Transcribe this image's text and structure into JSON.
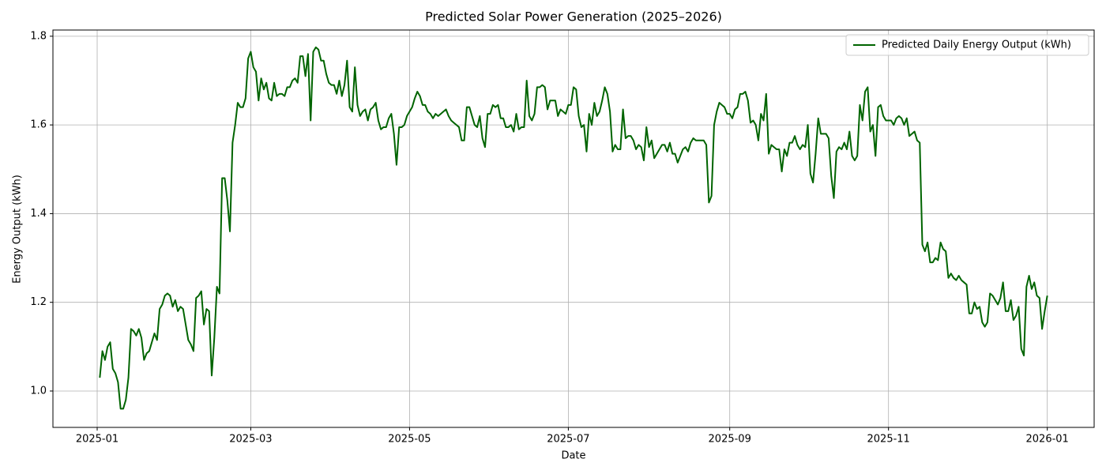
{
  "chart_data": {
    "type": "line",
    "title": "Predicted Solar Power Generation (2025–2026)",
    "xlabel": "Date",
    "ylabel": "Energy Output (kWh)",
    "x": [
      1,
      2,
      3,
      4,
      5,
      6,
      7,
      8,
      9,
      10,
      11,
      12,
      13,
      14,
      15,
      16,
      17,
      18,
      19,
      20,
      21,
      22,
      23,
      24,
      25,
      26,
      27,
      28,
      29,
      30,
      31,
      32,
      33,
      34,
      35,
      36,
      37,
      38,
      39,
      40,
      41,
      42,
      43,
      44,
      45,
      46,
      47,
      48,
      49,
      50,
      51,
      52,
      53,
      54,
      55,
      56,
      57,
      58,
      59,
      60,
      61,
      62,
      63,
      64,
      65,
      66,
      67,
      68,
      69,
      70,
      71,
      72,
      73,
      74,
      75,
      76,
      77,
      78,
      79,
      80,
      81,
      82,
      83,
      84,
      85,
      86,
      87,
      88,
      89,
      90,
      91,
      92,
      93,
      94,
      95,
      96,
      97,
      98,
      99,
      100,
      101,
      102,
      103,
      104,
      105,
      106,
      107,
      108,
      109,
      110,
      111,
      112,
      113,
      114,
      115,
      116,
      117,
      118,
      119,
      120,
      121,
      122,
      123,
      124,
      125,
      126,
      127,
      128,
      129,
      130,
      131,
      132,
      133,
      134,
      135,
      136,
      137,
      138,
      139,
      140,
      141,
      142,
      143,
      144,
      145,
      146,
      147,
      148,
      149,
      150,
      151,
      152,
      153,
      154,
      155,
      156,
      157,
      158,
      159,
      160,
      161,
      162,
      163,
      164,
      165,
      166,
      167,
      168,
      169,
      170,
      171,
      172,
      173,
      174,
      175,
      176,
      177,
      178,
      179,
      180,
      181,
      182,
      183,
      184,
      185,
      186,
      187,
      188,
      189,
      190,
      191,
      192,
      193,
      194,
      195,
      196,
      197,
      198,
      199,
      200,
      201,
      202,
      203,
      204,
      205,
      206,
      207,
      208,
      209,
      210,
      211,
      212,
      213,
      214,
      215,
      216,
      217,
      218,
      219,
      220,
      221,
      222,
      223,
      224,
      225,
      226,
      227,
      228,
      229,
      230,
      231,
      232,
      233,
      234,
      235,
      236,
      237,
      238,
      239,
      240,
      241,
      242,
      243,
      244,
      245,
      246,
      247,
      248,
      249,
      250,
      251,
      252,
      253,
      254,
      255,
      256,
      257,
      258,
      259,
      260,
      261,
      262,
      263,
      264,
      265,
      266,
      267,
      268,
      269,
      270,
      271,
      272,
      273,
      274,
      275,
      276,
      277,
      278,
      279,
      280,
      281,
      282,
      283,
      284,
      285,
      286,
      287,
      288,
      289,
      290,
      291,
      292,
      293,
      294,
      295,
      296,
      297,
      298,
      299,
      300,
      301,
      302,
      303,
      304,
      305,
      306,
      307,
      308,
      309,
      310,
      311,
      312,
      313,
      314,
      315,
      316,
      317,
      318,
      319,
      320,
      321,
      322,
      323,
      324,
      325,
      326,
      327,
      328,
      329,
      330,
      331,
      332,
      333,
      334,
      335,
      336,
      337,
      338,
      339,
      340,
      341,
      342,
      343,
      344,
      345,
      346,
      347,
      348,
      349,
      350,
      351,
      352,
      353,
      354,
      355,
      356,
      357,
      358,
      359,
      360,
      361,
      362,
      363,
      364,
      365
    ],
    "series": [
      {
        "name": "Predicted Daily Energy Output (kWh)",
        "color": "#006400",
        "values": [
          1.03,
          1.09,
          1.07,
          1.1,
          1.11,
          1.05,
          1.04,
          1.02,
          0.96,
          0.96,
          0.98,
          1.03,
          1.14,
          1.135,
          1.125,
          1.14,
          1.12,
          1.07,
          1.085,
          1.09,
          1.11,
          1.13,
          1.115,
          1.185,
          1.195,
          1.215,
          1.22,
          1.215,
          1.19,
          1.205,
          1.18,
          1.19,
          1.185,
          1.15,
          1.115,
          1.105,
          1.09,
          1.21,
          1.215,
          1.225,
          1.15,
          1.185,
          1.18,
          1.035,
          1.12,
          1.235,
          1.22,
          1.48,
          1.48,
          1.43,
          1.36,
          1.56,
          1.6,
          1.65,
          1.64,
          1.64,
          1.66,
          1.75,
          1.765,
          1.73,
          1.72,
          1.655,
          1.705,
          1.68,
          1.695,
          1.66,
          1.655,
          1.695,
          1.665,
          1.67,
          1.67,
          1.665,
          1.685,
          1.685,
          1.7,
          1.705,
          1.695,
          1.755,
          1.755,
          1.71,
          1.76,
          1.61,
          1.765,
          1.775,
          1.77,
          1.745,
          1.745,
          1.715,
          1.695,
          1.69,
          1.69,
          1.67,
          1.7,
          1.665,
          1.69,
          1.745,
          1.64,
          1.63,
          1.73,
          1.645,
          1.62,
          1.63,
          1.635,
          1.61,
          1.635,
          1.64,
          1.65,
          1.61,
          1.59,
          1.595,
          1.595,
          1.615,
          1.625,
          1.58,
          1.51,
          1.595,
          1.595,
          1.6,
          1.62,
          1.63,
          1.64,
          1.66,
          1.675,
          1.665,
          1.645,
          1.645,
          1.63,
          1.625,
          1.615,
          1.625,
          1.62,
          1.625,
          1.63,
          1.635,
          1.62,
          1.61,
          1.605,
          1.6,
          1.595,
          1.565,
          1.565,
          1.64,
          1.64,
          1.62,
          1.6,
          1.595,
          1.62,
          1.57,
          1.55,
          1.625,
          1.625,
          1.645,
          1.64,
          1.645,
          1.615,
          1.615,
          1.595,
          1.595,
          1.6,
          1.585,
          1.625,
          1.59,
          1.595,
          1.595,
          1.7,
          1.62,
          1.61,
          1.625,
          1.685,
          1.685,
          1.69,
          1.685,
          1.635,
          1.655,
          1.655,
          1.655,
          1.62,
          1.635,
          1.63,
          1.625,
          1.645,
          1.645,
          1.685,
          1.68,
          1.62,
          1.595,
          1.6,
          1.54,
          1.625,
          1.6,
          1.65,
          1.62,
          1.63,
          1.655,
          1.685,
          1.67,
          1.63,
          1.54,
          1.555,
          1.545,
          1.545,
          1.635,
          1.57,
          1.575,
          1.575,
          1.565,
          1.545,
          1.555,
          1.55,
          1.52,
          1.595,
          1.55,
          1.565,
          1.525,
          1.535,
          1.545,
          1.555,
          1.555,
          1.54,
          1.56,
          1.535,
          1.535,
          1.515,
          1.53,
          1.545,
          1.55,
          1.54,
          1.56,
          1.57,
          1.565,
          1.565,
          1.565,
          1.565,
          1.555,
          1.425,
          1.44,
          1.6,
          1.63,
          1.65,
          1.645,
          1.64,
          1.625,
          1.625,
          1.615,
          1.635,
          1.64,
          1.67,
          1.67,
          1.675,
          1.655,
          1.605,
          1.61,
          1.6,
          1.565,
          1.625,
          1.61,
          1.67,
          1.535,
          1.555,
          1.55,
          1.545,
          1.545,
          1.495,
          1.545,
          1.53,
          1.56,
          1.56,
          1.575,
          1.555,
          1.545,
          1.555,
          1.55,
          1.6,
          1.49,
          1.47,
          1.535,
          1.615,
          1.58,
          1.58,
          1.58,
          1.57,
          1.485,
          1.435,
          1.54,
          1.55,
          1.545,
          1.56,
          1.545,
          1.585,
          1.53,
          1.52,
          1.53,
          1.645,
          1.61,
          1.675,
          1.685,
          1.585,
          1.6,
          1.53,
          1.64,
          1.645,
          1.62,
          1.61,
          1.61,
          1.61,
          1.6,
          1.615,
          1.62,
          1.615,
          1.6,
          1.615,
          1.575,
          1.58,
          1.585,
          1.565,
          1.56,
          1.33,
          1.315,
          1.335,
          1.29,
          1.29,
          1.3,
          1.295,
          1.335,
          1.32,
          1.315,
          1.255,
          1.265,
          1.255,
          1.25,
          1.26,
          1.25,
          1.245,
          1.24,
          1.175,
          1.175,
          1.2,
          1.185,
          1.19,
          1.155,
          1.145,
          1.155,
          1.22,
          1.215,
          1.205,
          1.195,
          1.21,
          1.245,
          1.18,
          1.18,
          1.205,
          1.16,
          1.17,
          1.19,
          1.095,
          1.08,
          1.235,
          1.26,
          1.23,
          1.245,
          1.215,
          1.21,
          1.14,
          1.18,
          1.215
        ]
      }
    ],
    "xlim": [
      -17,
      383
    ],
    "xticks": [
      {
        "value": 0,
        "label": "2025-01"
      },
      {
        "value": 59,
        "label": "2025-03"
      },
      {
        "value": 120,
        "label": "2025-05"
      },
      {
        "value": 181,
        "label": "2025-07"
      },
      {
        "value": 243,
        "label": "2025-09"
      },
      {
        "value": 304,
        "label": "2025-11"
      },
      {
        "value": 365,
        "label": "2026-01"
      }
    ],
    "ylim": [
      0.918,
      1.814
    ],
    "yticks": [
      {
        "value": 1.0,
        "label": "1.0"
      },
      {
        "value": 1.2,
        "label": "1.2"
      },
      {
        "value": 1.4,
        "label": "1.4"
      },
      {
        "value": 1.6,
        "label": "1.6"
      },
      {
        "value": 1.8,
        "label": "1.8"
      }
    ],
    "grid": true,
    "legend": "upper right"
  }
}
